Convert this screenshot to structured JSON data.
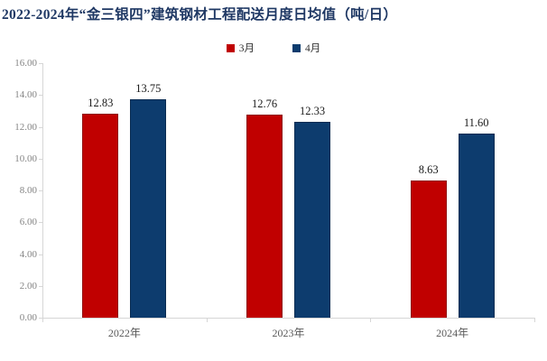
{
  "title": "2022-2024年“金三银四”建筑钢材工程配送月度日均值（吨/日）",
  "chart_data": {
    "type": "bar",
    "categories": [
      "2022年",
      "2023年",
      "2024年"
    ],
    "series": [
      {
        "name": "3月",
        "color": "#c00000",
        "edge_color": "#8f0a0a",
        "values": [
          12.83,
          12.76,
          8.63
        ]
      },
      {
        "name": "4月",
        "color": "#0d3c6e",
        "edge_color": "#0a2c52",
        "values": [
          13.75,
          12.33,
          11.6
        ]
      }
    ],
    "ylim": [
      0,
      16
    ],
    "ytick_step": 2,
    "ytick_labels": [
      "0.00",
      "2.00",
      "4.00",
      "6.00",
      "8.00",
      "10.00",
      "12.00",
      "14.00",
      "16.00"
    ],
    "grid": false,
    "legend_position": "top-center",
    "data_labels": [
      "12.83",
      "13.75",
      "12.76",
      "12.33",
      "8.63",
      "11.60"
    ]
  },
  "colors": {
    "title": "#1f3864",
    "axis": "#d6d6d6",
    "ytick_text": "#848484",
    "category_text": "#595959",
    "value_text": "#1a1a1a",
    "background": "#ffffff"
  }
}
